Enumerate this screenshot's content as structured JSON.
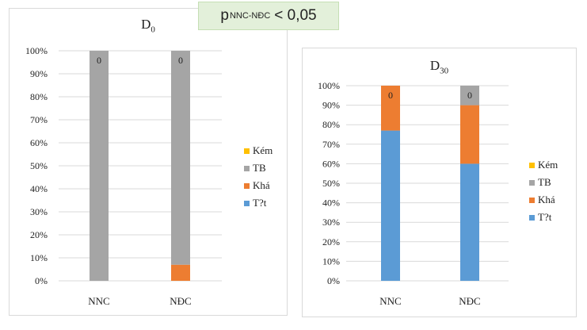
{
  "annotation": {
    "p_letter": "p",
    "p_subscript": "NNC-NĐC",
    "p_relation": "< 0,05"
  },
  "colors": {
    "Kem": "#ffc000",
    "TB": "#a5a5a5",
    "Kha": "#ed7d31",
    "Tot": "#5b9bd5"
  },
  "chart_data": [
    {
      "type": "bar",
      "stacked": true,
      "title_main": "D",
      "title_sub": "0",
      "categories": [
        "NNC",
        "NĐC"
      ],
      "yticks": [
        "0%",
        "10%",
        "20%",
        "30%",
        "40%",
        "50%",
        "60%",
        "70%",
        "80%",
        "90%",
        "100%"
      ],
      "ylim": [
        0,
        100
      ],
      "legend_position": "right",
      "series": [
        {
          "name": "T?t",
          "color": "#5b9bd5",
          "values": [
            0,
            0
          ]
        },
        {
          "name": "Khá",
          "color": "#ed7d31",
          "values": [
            0,
            7
          ]
        },
        {
          "name": "TB",
          "color": "#a5a5a5",
          "values": [
            100,
            93
          ]
        },
        {
          "name": "Kém",
          "color": "#ffc000",
          "values": [
            0,
            0
          ]
        }
      ],
      "data_labels": [
        "0",
        "0"
      ]
    },
    {
      "type": "bar",
      "stacked": true,
      "title_main": "D",
      "title_sub": "30",
      "categories": [
        "NNC",
        "NĐC"
      ],
      "yticks": [
        "0%",
        "10%",
        "20%",
        "30%",
        "40%",
        "50%",
        "60%",
        "70%",
        "80%",
        "90%",
        "100%"
      ],
      "ylim": [
        0,
        100
      ],
      "legend_position": "right",
      "series": [
        {
          "name": "T?t",
          "color": "#5b9bd5",
          "values": [
            77,
            60
          ]
        },
        {
          "name": "Khá",
          "color": "#ed7d31",
          "values": [
            23,
            30
          ]
        },
        {
          "name": "TB",
          "color": "#a5a5a5",
          "values": [
            0,
            10
          ]
        },
        {
          "name": "Kém",
          "color": "#ffc000",
          "values": [
            0,
            0
          ]
        }
      ],
      "data_labels": [
        "0",
        "0"
      ]
    }
  ]
}
